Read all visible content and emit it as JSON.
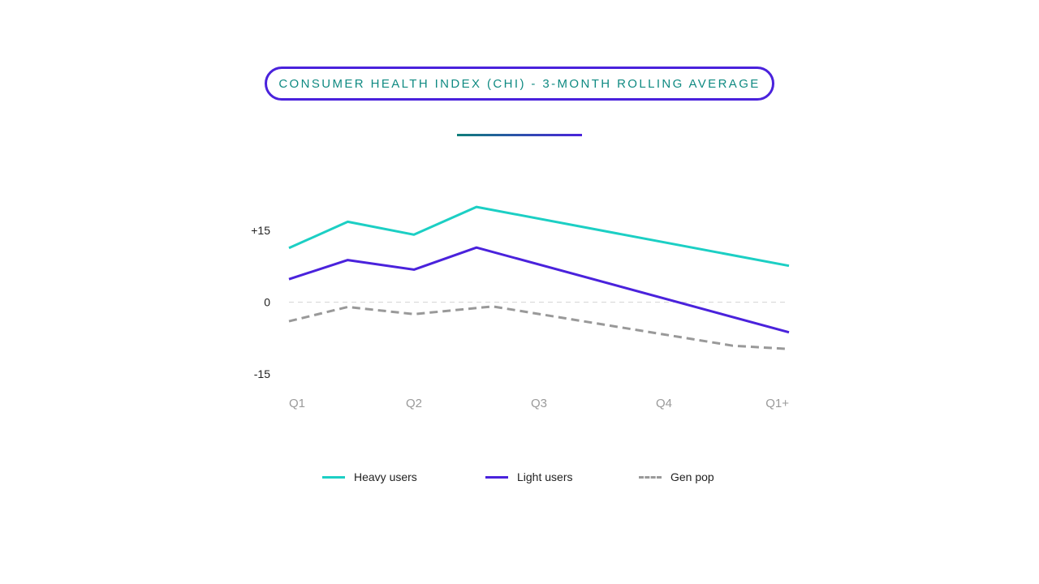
{
  "header": {
    "title": "CONSUMER HEALTH INDEX (CHI) - 3-MONTH ROLLING AVERAGE"
  },
  "colors": {
    "accent": "#4a22dc",
    "title_text": "#0f8a82",
    "heavy_users": "#1ccfc4",
    "light_users": "#4a22dc",
    "gen_pop": "#999999",
    "zero_line": "#d6d6d6"
  },
  "chart_data": {
    "type": "line",
    "title": "CONSUMER HEALTH INDEX (CHI) - 3-MONTH ROLLING AVERAGE",
    "xlabel": "",
    "ylabel": "",
    "x_ticks": [
      "Q1",
      "Q2",
      "Q3",
      "Q4",
      "Q1+"
    ],
    "y_ticks": [
      {
        "label": "+15",
        "value": 15
      },
      {
        "label": "0",
        "value": 0
      },
      {
        "label": "-15",
        "value": -15
      }
    ],
    "xlim": [
      0,
      4
    ],
    "ylim": [
      -15,
      15
    ],
    "grid": false,
    "reference_line": {
      "y": 0,
      "style": "dashed"
    },
    "legend_position": "bottom",
    "series": [
      {
        "name": "Heavy users",
        "color": "#1ccfc4",
        "dash": false,
        "x": [
          0,
          0.47,
          1.0,
          1.5,
          4.0
        ],
        "y": [
          11.3,
          16.8,
          14.1,
          19.9,
          7.6
        ]
      },
      {
        "name": "Light users",
        "color": "#4a22dc",
        "dash": false,
        "x": [
          0,
          0.47,
          1.0,
          1.5,
          4.0
        ],
        "y": [
          4.8,
          8.8,
          6.8,
          11.4,
          -6.3
        ]
      },
      {
        "name": "Gen pop",
        "color": "#999999",
        "dash": true,
        "x": [
          0,
          0.47,
          1.0,
          1.63,
          3.55,
          4.0
        ],
        "y": [
          -4.0,
          -1.0,
          -2.5,
          -0.9,
          -9.1,
          -9.8
        ]
      }
    ]
  }
}
